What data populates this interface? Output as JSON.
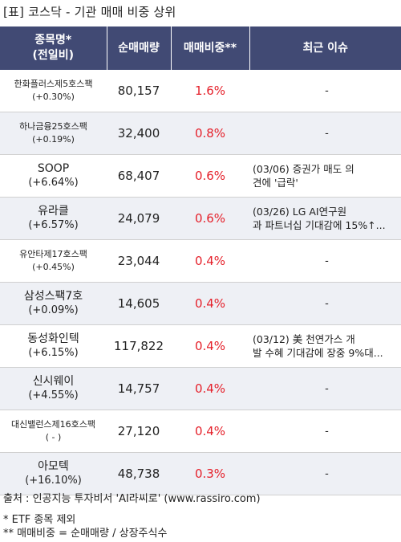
{
  "title": "[표] 코스닥 - 기관 매매 비중 상위",
  "headers": {
    "name_line1": "종목명*",
    "name_line2": "(전일비)",
    "volume": "순매매량",
    "ratio": "매매비중**",
    "issue": "최근 이슈"
  },
  "rows": [
    {
      "name": "한화플러스제5호스팩",
      "change": "(+0.30%)",
      "volume": "80,157",
      "ratio": "1.6%",
      "issue_line1": "-",
      "issue_line2": ""
    },
    {
      "name": "하나금융25호스팩",
      "change": "(+0.19%)",
      "volume": "32,400",
      "ratio": "0.8%",
      "issue_line1": "-",
      "issue_line2": ""
    },
    {
      "name": "SOOP",
      "change": "(+6.64%)",
      "volume": "68,407",
      "ratio": "0.6%",
      "issue_line1": "(03/06) 증권가 매도 의",
      "issue_line2": "견에 '급락'"
    },
    {
      "name": "유라클",
      "change": "(+6.57%)",
      "volume": "24,079",
      "ratio": "0.6%",
      "issue_line1": "(03/26) LG AI연구원",
      "issue_line2": "과 파트너십 기대감에 15%↑..."
    },
    {
      "name": "유안타제17호스팩",
      "change": "(+0.45%)",
      "volume": "23,044",
      "ratio": "0.4%",
      "issue_line1": "-",
      "issue_line2": ""
    },
    {
      "name": "삼성스팩7호",
      "change": "(+0.09%)",
      "volume": "14,605",
      "ratio": "0.4%",
      "issue_line1": "-",
      "issue_line2": ""
    },
    {
      "name": "동성화인텍",
      "change": "(+6.15%)",
      "volume": "117,822",
      "ratio": "0.4%",
      "issue_line1": "(03/12) 美 천연가스 개",
      "issue_line2": "발 수혜 기대감에 장중 9%대..."
    },
    {
      "name": "신시웨이",
      "change": "(+4.55%)",
      "volume": "14,757",
      "ratio": "0.4%",
      "issue_line1": "-",
      "issue_line2": ""
    },
    {
      "name": "대신밸런스제16호스팩",
      "change": "( - )",
      "volume": "27,120",
      "ratio": "0.4%",
      "issue_line1": "-",
      "issue_line2": ""
    },
    {
      "name": "아모텍",
      "change": "(+16.10%)",
      "volume": "48,738",
      "ratio": "0.3%",
      "issue_line1": "-",
      "issue_line2": ""
    }
  ],
  "footer": {
    "source": "출처 : 인공지능 투자비서 'AI라씨로' (www.rassiro.com)",
    "note1": "* ETF 종목 제외",
    "note2": "** 매매비중 = 순매매량 / 상장주식수"
  }
}
